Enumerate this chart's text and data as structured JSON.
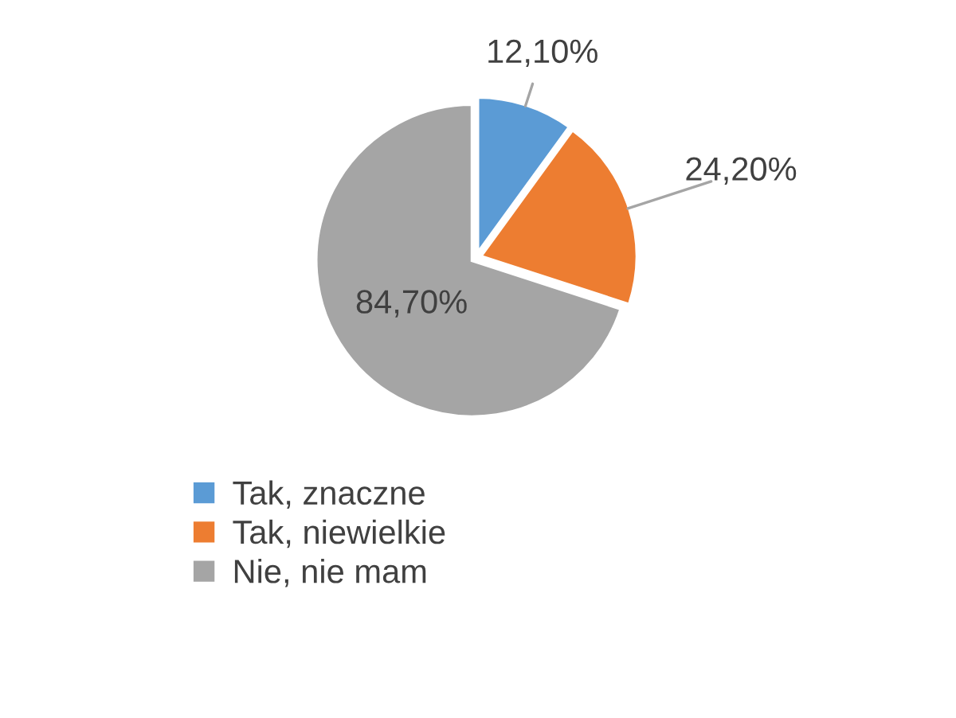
{
  "chart_data": {
    "type": "pie",
    "categories": [
      "Tak, znaczne",
      "Tak, niewielkie",
      "Nie, nie mam"
    ],
    "values": [
      12.1,
      24.2,
      84.7
    ],
    "colors": [
      "#5b9bd5",
      "#ed7d31",
      "#a5a5a5"
    ],
    "value_labels": [
      "12,10%",
      "24,20%",
      "84,70%"
    ],
    "legend": "bottom"
  }
}
